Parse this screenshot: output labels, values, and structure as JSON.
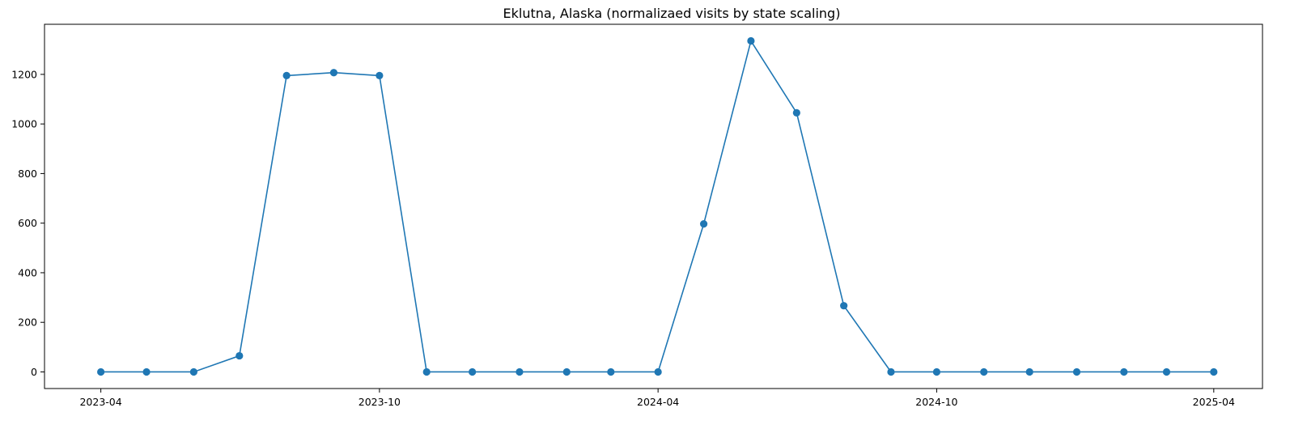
{
  "chart_data": {
    "type": "line",
    "title": "Eklutna, Alaska (normalizaed visits by state scaling)",
    "xlabel": "",
    "ylabel": "",
    "x": [
      "2023-04-01",
      "2023-05-01",
      "2023-06-01",
      "2023-07-01",
      "2023-08-01",
      "2023-09-01",
      "2023-10-01",
      "2023-11-01",
      "2023-12-01",
      "2024-01-01",
      "2024-02-01",
      "2024-03-01",
      "2024-04-01",
      "2024-05-01",
      "2024-06-01",
      "2024-07-01",
      "2024-08-01",
      "2024-09-01",
      "2024-10-01",
      "2024-11-01",
      "2024-12-01",
      "2025-01-01",
      "2025-02-01",
      "2025-03-01",
      "2025-04-01"
    ],
    "series": [
      {
        "values": [
          0,
          0,
          0,
          65,
          1195,
          1207,
          1195,
          0,
          0,
          0,
          0,
          0,
          0,
          597,
          1335,
          1045,
          267,
          0,
          0,
          0,
          0,
          0,
          0,
          0,
          0
        ]
      }
    ],
    "xlim": [
      "2023-02-23",
      "2025-05-03"
    ],
    "ylim": [
      -67,
      1402
    ],
    "x_ticks": [
      "2023-04-01",
      "2023-10-01",
      "2024-04-01",
      "2024-10-01",
      "2025-04-01"
    ],
    "x_tick_labels": [
      "2023-04",
      "2023-10",
      "2024-04",
      "2024-10",
      "2025-04"
    ],
    "y_ticks": [
      0,
      200,
      400,
      600,
      800,
      1000,
      1200
    ],
    "y_tick_labels": [
      "0",
      "200",
      "400",
      "600",
      "800",
      "1000",
      "1200"
    ],
    "grid": false,
    "legend": "none",
    "colors": {
      "series": "#1f77b4",
      "axes": "#000000"
    },
    "marker": "circle"
  }
}
